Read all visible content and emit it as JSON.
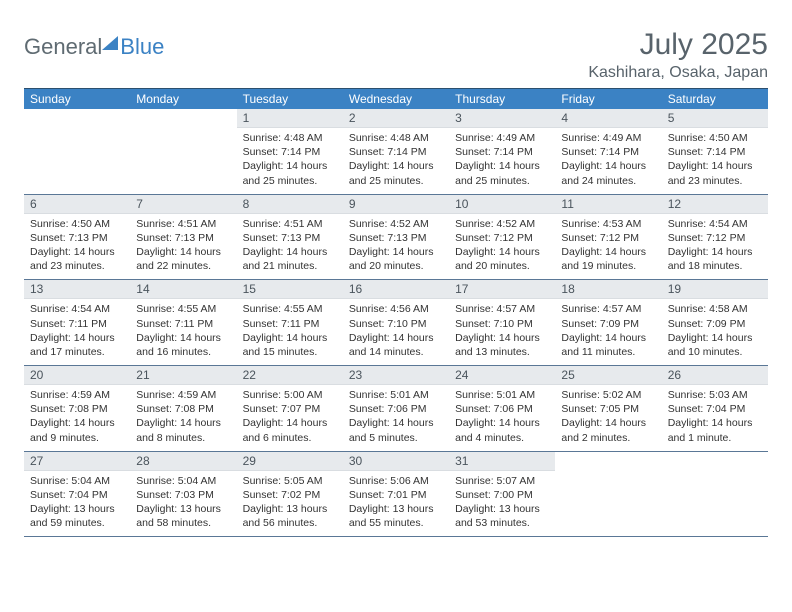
{
  "brand": {
    "word1": "General",
    "word2": "Blue"
  },
  "title": "July 2025",
  "location": "Kashihara, Osaka, Japan",
  "colors": {
    "header_bg": "#3b82c4",
    "header_text": "#ffffff",
    "daynum_bg": "#e7eaed",
    "border": "#5a7796",
    "logo_gray": "#5f6b72",
    "logo_blue": "#3b82c4",
    "title_color": "#58636b"
  },
  "dow": [
    "Sunday",
    "Monday",
    "Tuesday",
    "Wednesday",
    "Thursday",
    "Friday",
    "Saturday"
  ],
  "weeks": [
    [
      null,
      null,
      {
        "n": "1",
        "sr": "4:48 AM",
        "ss": "7:14 PM",
        "dl": "14 hours and 25 minutes."
      },
      {
        "n": "2",
        "sr": "4:48 AM",
        "ss": "7:14 PM",
        "dl": "14 hours and 25 minutes."
      },
      {
        "n": "3",
        "sr": "4:49 AM",
        "ss": "7:14 PM",
        "dl": "14 hours and 25 minutes."
      },
      {
        "n": "4",
        "sr": "4:49 AM",
        "ss": "7:14 PM",
        "dl": "14 hours and 24 minutes."
      },
      {
        "n": "5",
        "sr": "4:50 AM",
        "ss": "7:14 PM",
        "dl": "14 hours and 23 minutes."
      }
    ],
    [
      {
        "n": "6",
        "sr": "4:50 AM",
        "ss": "7:13 PM",
        "dl": "14 hours and 23 minutes."
      },
      {
        "n": "7",
        "sr": "4:51 AM",
        "ss": "7:13 PM",
        "dl": "14 hours and 22 minutes."
      },
      {
        "n": "8",
        "sr": "4:51 AM",
        "ss": "7:13 PM",
        "dl": "14 hours and 21 minutes."
      },
      {
        "n": "9",
        "sr": "4:52 AM",
        "ss": "7:13 PM",
        "dl": "14 hours and 20 minutes."
      },
      {
        "n": "10",
        "sr": "4:52 AM",
        "ss": "7:12 PM",
        "dl": "14 hours and 20 minutes."
      },
      {
        "n": "11",
        "sr": "4:53 AM",
        "ss": "7:12 PM",
        "dl": "14 hours and 19 minutes."
      },
      {
        "n": "12",
        "sr": "4:54 AM",
        "ss": "7:12 PM",
        "dl": "14 hours and 18 minutes."
      }
    ],
    [
      {
        "n": "13",
        "sr": "4:54 AM",
        "ss": "7:11 PM",
        "dl": "14 hours and 17 minutes."
      },
      {
        "n": "14",
        "sr": "4:55 AM",
        "ss": "7:11 PM",
        "dl": "14 hours and 16 minutes."
      },
      {
        "n": "15",
        "sr": "4:55 AM",
        "ss": "7:11 PM",
        "dl": "14 hours and 15 minutes."
      },
      {
        "n": "16",
        "sr": "4:56 AM",
        "ss": "7:10 PM",
        "dl": "14 hours and 14 minutes."
      },
      {
        "n": "17",
        "sr": "4:57 AM",
        "ss": "7:10 PM",
        "dl": "14 hours and 13 minutes."
      },
      {
        "n": "18",
        "sr": "4:57 AM",
        "ss": "7:09 PM",
        "dl": "14 hours and 11 minutes."
      },
      {
        "n": "19",
        "sr": "4:58 AM",
        "ss": "7:09 PM",
        "dl": "14 hours and 10 minutes."
      }
    ],
    [
      {
        "n": "20",
        "sr": "4:59 AM",
        "ss": "7:08 PM",
        "dl": "14 hours and 9 minutes."
      },
      {
        "n": "21",
        "sr": "4:59 AM",
        "ss": "7:08 PM",
        "dl": "14 hours and 8 minutes."
      },
      {
        "n": "22",
        "sr": "5:00 AM",
        "ss": "7:07 PM",
        "dl": "14 hours and 6 minutes."
      },
      {
        "n": "23",
        "sr": "5:01 AM",
        "ss": "7:06 PM",
        "dl": "14 hours and 5 minutes."
      },
      {
        "n": "24",
        "sr": "5:01 AM",
        "ss": "7:06 PM",
        "dl": "14 hours and 4 minutes."
      },
      {
        "n": "25",
        "sr": "5:02 AM",
        "ss": "7:05 PM",
        "dl": "14 hours and 2 minutes."
      },
      {
        "n": "26",
        "sr": "5:03 AM",
        "ss": "7:04 PM",
        "dl": "14 hours and 1 minute."
      }
    ],
    [
      {
        "n": "27",
        "sr": "5:04 AM",
        "ss": "7:04 PM",
        "dl": "13 hours and 59 minutes."
      },
      {
        "n": "28",
        "sr": "5:04 AM",
        "ss": "7:03 PM",
        "dl": "13 hours and 58 minutes."
      },
      {
        "n": "29",
        "sr": "5:05 AM",
        "ss": "7:02 PM",
        "dl": "13 hours and 56 minutes."
      },
      {
        "n": "30",
        "sr": "5:06 AM",
        "ss": "7:01 PM",
        "dl": "13 hours and 55 minutes."
      },
      {
        "n": "31",
        "sr": "5:07 AM",
        "ss": "7:00 PM",
        "dl": "13 hours and 53 minutes."
      },
      null,
      null
    ]
  ],
  "labels": {
    "sunrise": "Sunrise:",
    "sunset": "Sunset:",
    "daylight": "Daylight:"
  }
}
